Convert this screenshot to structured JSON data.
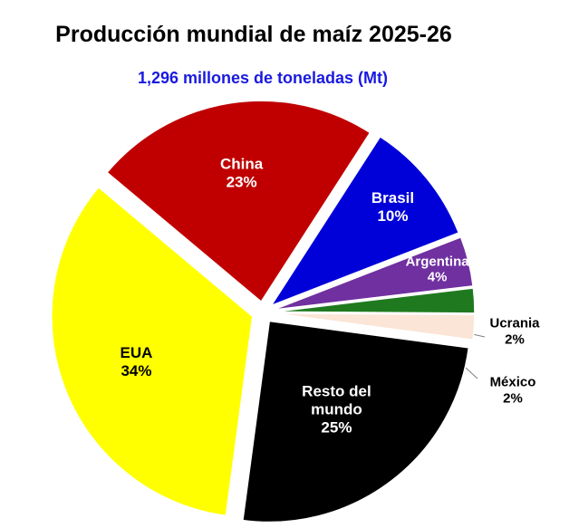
{
  "title": "Producción mundial de maíz 2025-26",
  "subtitle": "1,296 millones de toneladas (Mt)",
  "colors": {
    "subtitle": "#1a1ae0"
  },
  "chart_data": {
    "type": "pie",
    "title": "Producción mundial de maíz 2025-26",
    "subtitle": "1,296 millones de toneladas (Mt)",
    "slices": [
      {
        "label": "China",
        "value": 23,
        "value_label": "23%",
        "color": "#c00000",
        "label_color": "#ffffff"
      },
      {
        "label": "Brasil",
        "value": 10,
        "value_label": "10%",
        "color": "#0000d8",
        "label_color": "#ffffff"
      },
      {
        "label": "Argentina",
        "value": 4,
        "value_label": "4%",
        "color": "#7030a0",
        "label_color": "#ffffff"
      },
      {
        "label": "Ucrania",
        "value": 2,
        "value_label": "2%",
        "color": "#1f7a1f",
        "label_color": "#000000"
      },
      {
        "label": "México",
        "value": 2,
        "value_label": "2%",
        "color": "#fbe5d6",
        "label_color": "#000000"
      },
      {
        "label": "Resto del mundo",
        "value": 25,
        "value_label": "25%",
        "color": "#000000",
        "label_color": "#ffffff"
      },
      {
        "label": "EUA",
        "value": 34,
        "value_label": "34%",
        "color": "#ffff00",
        "label_color": "#000000"
      }
    ],
    "legend": "none"
  }
}
